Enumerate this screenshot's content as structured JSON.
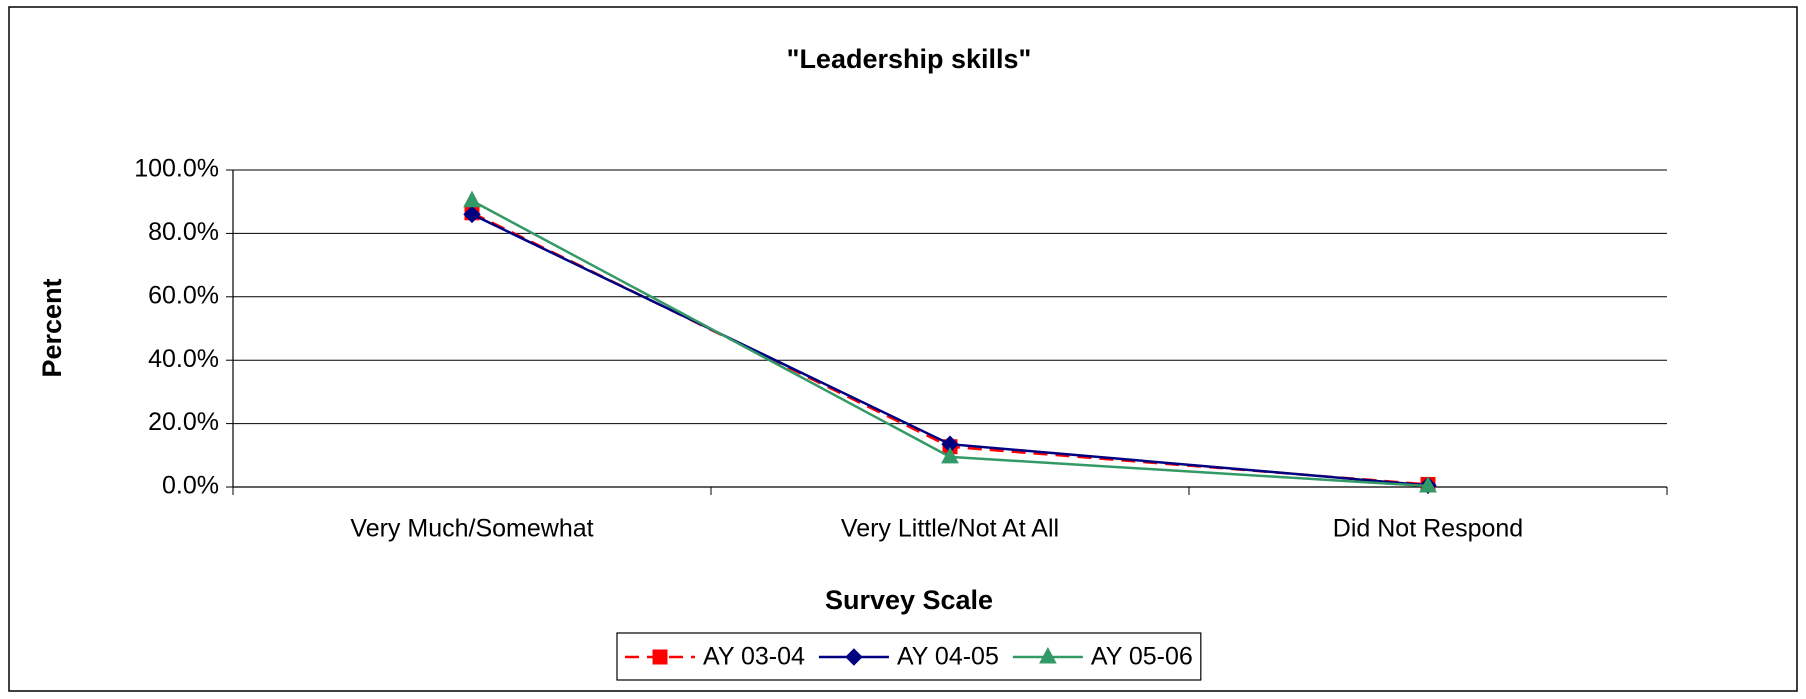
{
  "chart_data": {
    "type": "line",
    "title": "\"Leadership skills\"",
    "x_label": "Survey Scale",
    "y_label": "Percent",
    "categories": [
      "Very Much/Somewhat",
      "Very Little/Not At All",
      "Did Not Respond"
    ],
    "series": [
      {
        "name": "AY 03-04",
        "color": "#ff0000",
        "marker": "square",
        "dashed": true,
        "values": [
          86.5,
          12.7,
          0.8
        ]
      },
      {
        "name": "AY 04-05",
        "color": "#000080",
        "marker": "diamond",
        "dashed": false,
        "values": [
          86.0,
          13.5,
          0.5
        ]
      },
      {
        "name": "AY 05-06",
        "color": "#339966",
        "marker": "triangle",
        "dashed": false,
        "values": [
          90.3,
          9.5,
          0.3
        ]
      }
    ],
    "ylim": [
      0,
      100
    ],
    "yticks": [
      {
        "value": 0,
        "label": "0.0%"
      },
      {
        "value": 20,
        "label": "20.0%"
      },
      {
        "value": 40,
        "label": "40.0%"
      },
      {
        "value": 60,
        "label": "60.0%"
      },
      {
        "value": 80,
        "label": "80.0%"
      },
      {
        "value": 100,
        "label": "100.0%"
      }
    ],
    "grid": true,
    "legend": "bottom"
  }
}
